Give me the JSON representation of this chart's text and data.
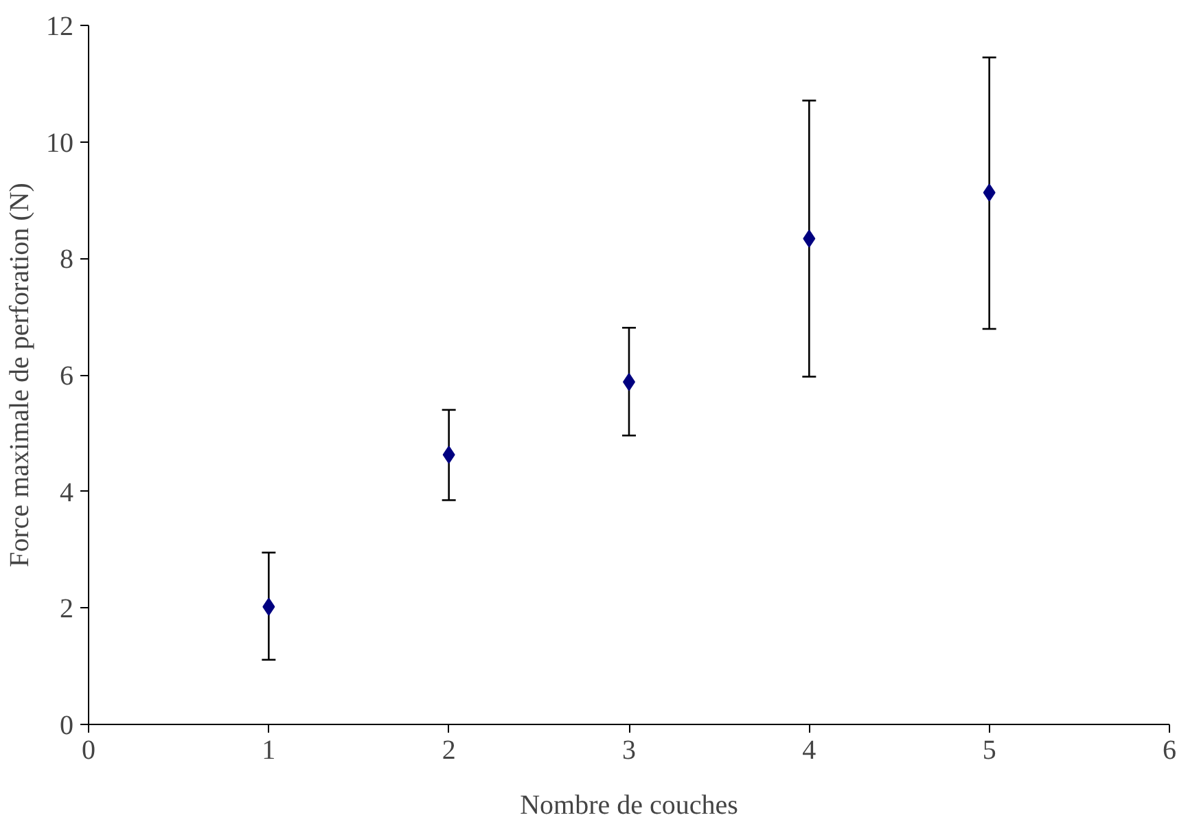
{
  "chart_data": {
    "type": "scatter",
    "xlabel": "Nombre de couches",
    "ylabel": "Force maximale de perforation (N)",
    "x": [
      1,
      2,
      3,
      4,
      5
    ],
    "values": [
      2.02,
      4.63,
      5.88,
      8.34,
      9.13
    ],
    "errors": [
      [
        1.11,
        2.95
      ],
      [
        3.85,
        5.4
      ],
      [
        4.96,
        6.81
      ],
      [
        5.97,
        10.71
      ],
      [
        6.79,
        11.45
      ]
    ],
    "color": "#000080",
    "marker": "diamond",
    "grid": false,
    "xlim": [
      0,
      6
    ],
    "xticks": [
      0,
      1,
      2,
      3,
      4,
      5,
      6
    ],
    "ylim": [
      0,
      12
    ],
    "yticks": [
      0,
      2,
      4,
      6,
      8,
      10,
      12
    ]
  }
}
